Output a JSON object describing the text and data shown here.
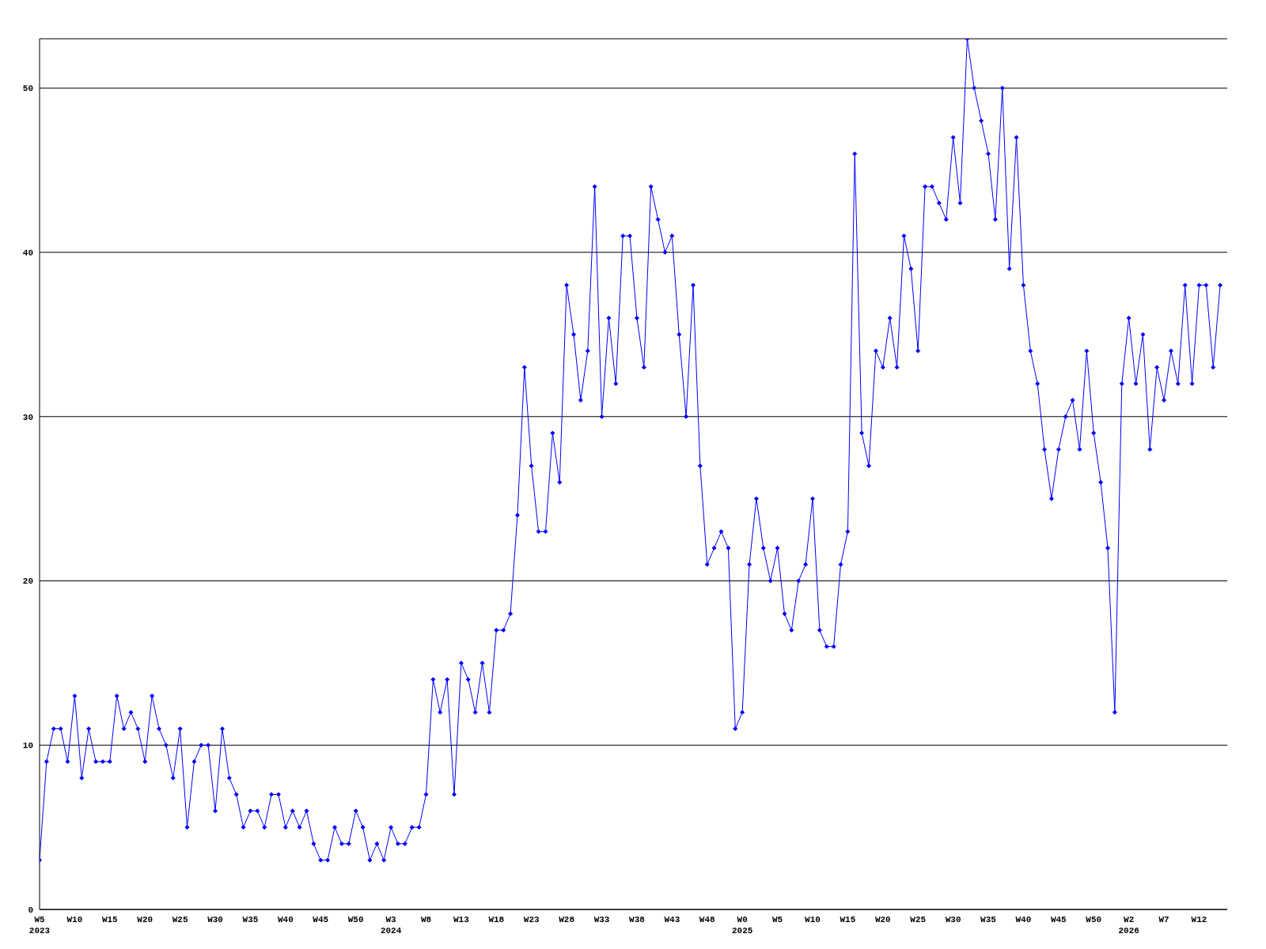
{
  "chart_data": {
    "type": "line",
    "categories": [
      "W5\n2023",
      null,
      null,
      null,
      null,
      "W10",
      null,
      null,
      null,
      null,
      "W15",
      null,
      null,
      null,
      null,
      "W20",
      null,
      null,
      null,
      null,
      "W25",
      null,
      null,
      null,
      null,
      "W30",
      null,
      null,
      null,
      null,
      "W35",
      null,
      null,
      null,
      null,
      "W40",
      null,
      null,
      null,
      null,
      "W45",
      null,
      null,
      null,
      null,
      "W50",
      null,
      null,
      null,
      null,
      "W3\n2024",
      null,
      null,
      null,
      null,
      "W8",
      null,
      null,
      null,
      null,
      "W13",
      null,
      null,
      null,
      null,
      "W18",
      null,
      null,
      null,
      null,
      "W23",
      null,
      null,
      null,
      null,
      "W28",
      null,
      null,
      null,
      null,
      "W33",
      null,
      null,
      null,
      null,
      "W38",
      null,
      null,
      null,
      null,
      "W43",
      null,
      null,
      null,
      null,
      "W48",
      null,
      null,
      null,
      null,
      "W0\n2025",
      null,
      null,
      null,
      null,
      "W5",
      null,
      null,
      null,
      null,
      "W10",
      null,
      null,
      null,
      null,
      "W15",
      null,
      null,
      null,
      null,
      "W20",
      null,
      null,
      null,
      null,
      "W25",
      null,
      null,
      null,
      null,
      "W30",
      null,
      null,
      null,
      null,
      "W35",
      null,
      null,
      null,
      null,
      "W40",
      null,
      null,
      null,
      null,
      "W45",
      null,
      null,
      null,
      null,
      "W50",
      null,
      null,
      null,
      null,
      "W2\n2026",
      null,
      null,
      null,
      null,
      "W7",
      null,
      null,
      null,
      null,
      "W12",
      null,
      null,
      null
    ],
    "series": [
      {
        "color": "#0000ff",
        "values": [
          3,
          9,
          11,
          11,
          9,
          13,
          8,
          11,
          9,
          9,
          9,
          13,
          11,
          12,
          11,
          9,
          13,
          11,
          10,
          8,
          11,
          5,
          9,
          10,
          10,
          6,
          11,
          8,
          7,
          5,
          6,
          6,
          5,
          7,
          7,
          5,
          6,
          5,
          6,
          4,
          3,
          3,
          5,
          4,
          4,
          6,
          5,
          3,
          4,
          3,
          5,
          4,
          4,
          5,
          5,
          7,
          14,
          12,
          14,
          7,
          15,
          14,
          12,
          15,
          12,
          17,
          17,
          18,
          24,
          33,
          27,
          23,
          23,
          29,
          26,
          38,
          35,
          31,
          34,
          44,
          30,
          36,
          32,
          41,
          41,
          36,
          33,
          44,
          42,
          40,
          41,
          35,
          30,
          38,
          27,
          21,
          22,
          23,
          22,
          11,
          12,
          21,
          25,
          22,
          20,
          22,
          18,
          17,
          20,
          21,
          25,
          17,
          16,
          16,
          21,
          23,
          46,
          29,
          27,
          34,
          33,
          36,
          33,
          41,
          39,
          34,
          44,
          44,
          43,
          42,
          47,
          43,
          53,
          50,
          48,
          46,
          42,
          50,
          39,
          47,
          38,
          34,
          32,
          28,
          25,
          28,
          30,
          31,
          28,
          34,
          29,
          26,
          22,
          12,
          32,
          36,
          32,
          35,
          28,
          33,
          31,
          34,
          32,
          38,
          32,
          38,
          38,
          33,
          38
        ]
      }
    ],
    "ylim": [
      0,
      53
    ],
    "yticks": [
      0,
      10,
      20,
      30,
      40,
      50
    ],
    "grid": "y",
    "marker": "diamond",
    "line_style": "solid",
    "legend": false
  }
}
